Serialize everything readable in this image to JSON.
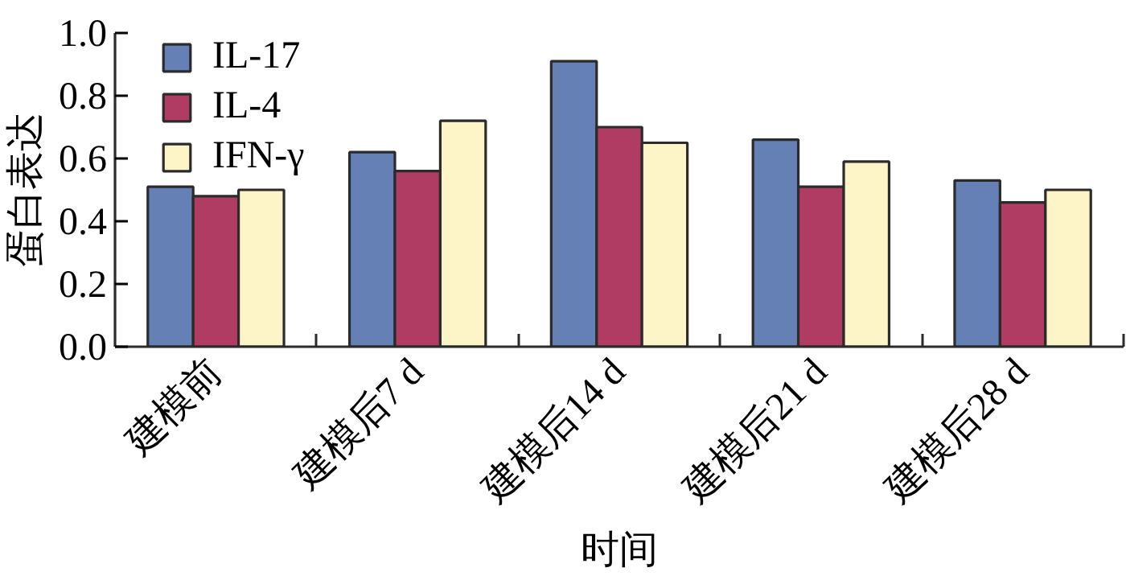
{
  "chart_data": {
    "type": "bar",
    "xlabel": "时间",
    "ylabel": "蛋白表达",
    "categories": [
      "建模前",
      "建模后7 d",
      "建模后14 d",
      "建模后21 d",
      "建模后28 d"
    ],
    "series": [
      {
        "name": "IL-17",
        "color": "#6480b4",
        "values": [
          0.51,
          0.62,
          0.91,
          0.66,
          0.53
        ]
      },
      {
        "name": "IL-4",
        "color": "#b03c64",
        "values": [
          0.48,
          0.56,
          0.7,
          0.51,
          0.46
        ]
      },
      {
        "name": "IFN-γ",
        "color": "#fdf5c8",
        "values": [
          0.5,
          0.72,
          0.65,
          0.59,
          0.5
        ]
      }
    ],
    "ylim": [
      0,
      1.0
    ],
    "yticks": [
      {
        "value": 0,
        "label": "0.0"
      },
      0.2,
      0.4,
      0.6,
      0.8,
      {
        "value": 1,
        "label": "1.0"
      }
    ],
    "grid": false,
    "legend": "top left"
  }
}
